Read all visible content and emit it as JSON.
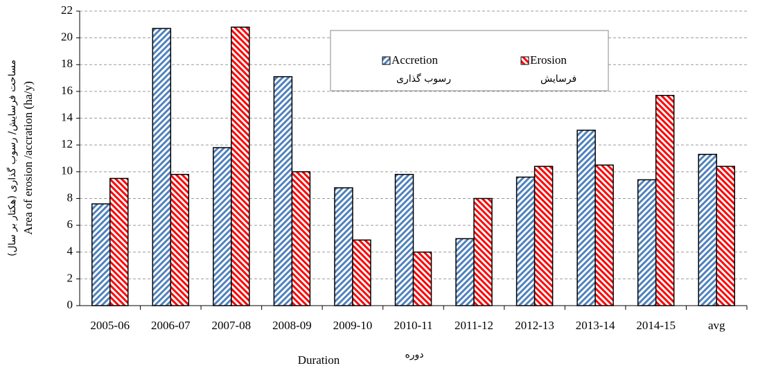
{
  "chart_data": {
    "type": "bar",
    "ylabel": "Area of erosion /accration (ha/y)",
    "ylabel_fa": "مساحت فرسایش/ رسوب گذاری (هکتار بر سال)",
    "xlabel": "Duration",
    "xlabel_fa": "دوره",
    "categories": [
      "2005-06",
      "2006-07",
      "2007-08",
      "2008-09",
      "2009-10",
      "2010-11",
      "2011-12",
      "2012-13",
      "2013-14",
      "2014-15",
      "avg"
    ],
    "series": [
      {
        "name": "Accretion",
        "name_fa": "رسوب گذاری",
        "color": "#4f81bd",
        "values": [
          7.6,
          20.7,
          11.8,
          17.1,
          8.8,
          9.8,
          5.0,
          9.6,
          13.1,
          9.4,
          11.3
        ]
      },
      {
        "name": "Erosion",
        "name_fa": "فرسایش",
        "color": "#ff0000",
        "values": [
          9.5,
          9.8,
          20.8,
          10.0,
          4.9,
          4.0,
          8.0,
          10.4,
          10.5,
          15.7,
          10.4
        ]
      }
    ],
    "ylim": [
      0,
      22
    ],
    "yticks": [
      0,
      2,
      4,
      6,
      8,
      10,
      12,
      14,
      16,
      18,
      20,
      22
    ],
    "grid": true
  }
}
